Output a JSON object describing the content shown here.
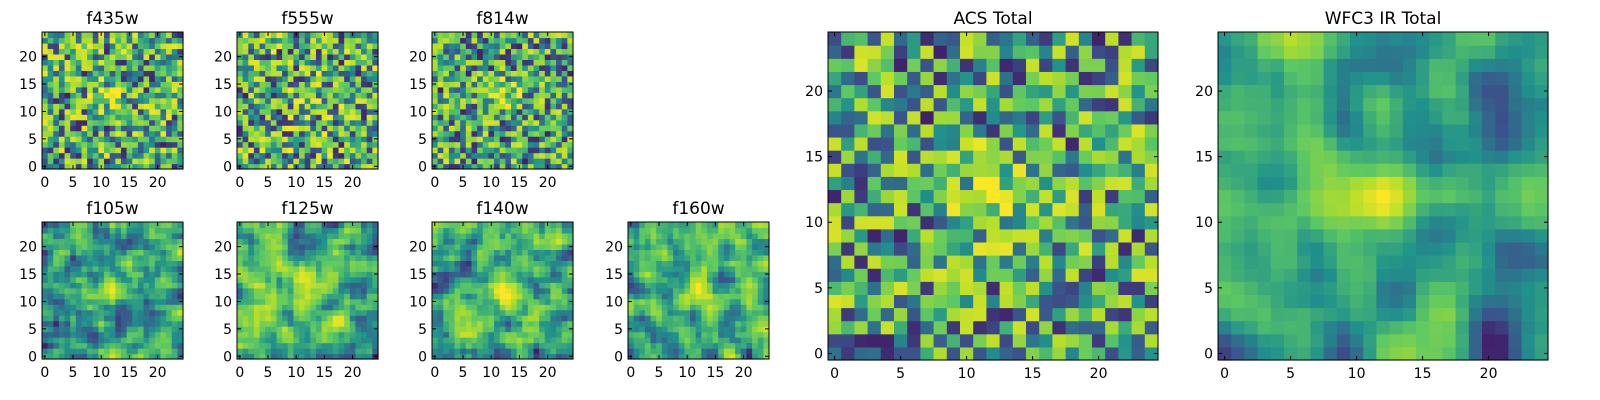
{
  "chart_data": [
    {
      "id": "f435w",
      "type": "heatmap",
      "title": "f435w",
      "size": 25,
      "x_ticks": [
        "0",
        "5",
        "10",
        "15",
        "20"
      ],
      "y_ticks": [
        "0",
        "5",
        "10",
        "15",
        "20"
      ],
      "seed": 11,
      "smooth": 0,
      "peak": [
        12,
        13
      ],
      "peak_strength": 0.25
    },
    {
      "id": "f555w",
      "type": "heatmap",
      "title": "f555w",
      "size": 25,
      "x_ticks": [
        "0",
        "5",
        "10",
        "15",
        "20"
      ],
      "y_ticks": [
        "0",
        "5",
        "10",
        "15",
        "20"
      ],
      "seed": 23,
      "smooth": 0,
      "peak": [
        12,
        12
      ],
      "peak_strength": 0.2
    },
    {
      "id": "f814w",
      "type": "heatmap",
      "title": "f814w",
      "size": 25,
      "x_ticks": [
        "0",
        "5",
        "10",
        "15",
        "20"
      ],
      "y_ticks": [
        "0",
        "5",
        "10",
        "15",
        "20"
      ],
      "seed": 37,
      "smooth": 0,
      "peak": [
        12,
        13
      ],
      "peak_strength": 0.35
    },
    {
      "id": "f105w",
      "type": "heatmap",
      "title": "f105w",
      "size": 25,
      "x_ticks": [
        "0",
        "5",
        "10",
        "15",
        "20"
      ],
      "y_ticks": [
        "0",
        "5",
        "10",
        "15",
        "20"
      ],
      "seed": 41,
      "smooth": 1,
      "peak": [
        12,
        13
      ],
      "peak_strength": 0.4
    },
    {
      "id": "f125w",
      "type": "heatmap",
      "title": "f125w",
      "size": 25,
      "x_ticks": [
        "0",
        "5",
        "10",
        "15",
        "20"
      ],
      "y_ticks": [
        "0",
        "5",
        "10",
        "15",
        "20"
      ],
      "seed": 53,
      "smooth": 1,
      "peak": [
        12,
        12
      ],
      "peak_strength": 0.3
    },
    {
      "id": "f140w",
      "type": "heatmap",
      "title": "f140w",
      "size": 25,
      "x_ticks": [
        "0",
        "5",
        "10",
        "15",
        "20"
      ],
      "y_ticks": [
        "0",
        "5",
        "10",
        "15",
        "20"
      ],
      "seed": 67,
      "smooth": 1,
      "peak": [
        12,
        12
      ],
      "peak_strength": 0.4
    },
    {
      "id": "f160w",
      "type": "heatmap",
      "title": "f160w",
      "size": 25,
      "x_ticks": [
        "0",
        "5",
        "10",
        "15",
        "20"
      ],
      "y_ticks": [
        "0",
        "5",
        "10",
        "15",
        "20"
      ],
      "seed": 79,
      "smooth": 1,
      "peak": [
        12,
        12
      ],
      "peak_strength": 0.4
    },
    {
      "id": "acs-total",
      "type": "heatmap",
      "title": "ACS Total",
      "size": 25,
      "x_ticks": [
        "0",
        "5",
        "10",
        "15",
        "20"
      ],
      "y_ticks": [
        "0",
        "5",
        "10",
        "15",
        "20"
      ],
      "seed": 97,
      "smooth": 0,
      "peak": [
        12,
        12
      ],
      "peak_strength": 0.35
    },
    {
      "id": "wfc3-ir-total",
      "type": "heatmap",
      "title": "WFC3 IR Total",
      "size": 25,
      "x_ticks": [
        "0",
        "5",
        "10",
        "15",
        "20"
      ],
      "y_ticks": [
        "0",
        "5",
        "10",
        "15",
        "20"
      ],
      "seed": 131,
      "smooth": 2,
      "peak": [
        12,
        12
      ],
      "peak_strength": 0.55
    }
  ],
  "colors": {
    "colormap": [
      "#440154",
      "#3b528b",
      "#21918c",
      "#5ec962",
      "#b5de2b",
      "#fde725"
    ],
    "frame": "#000000",
    "text": "#000000",
    "background": "#ffffff"
  }
}
